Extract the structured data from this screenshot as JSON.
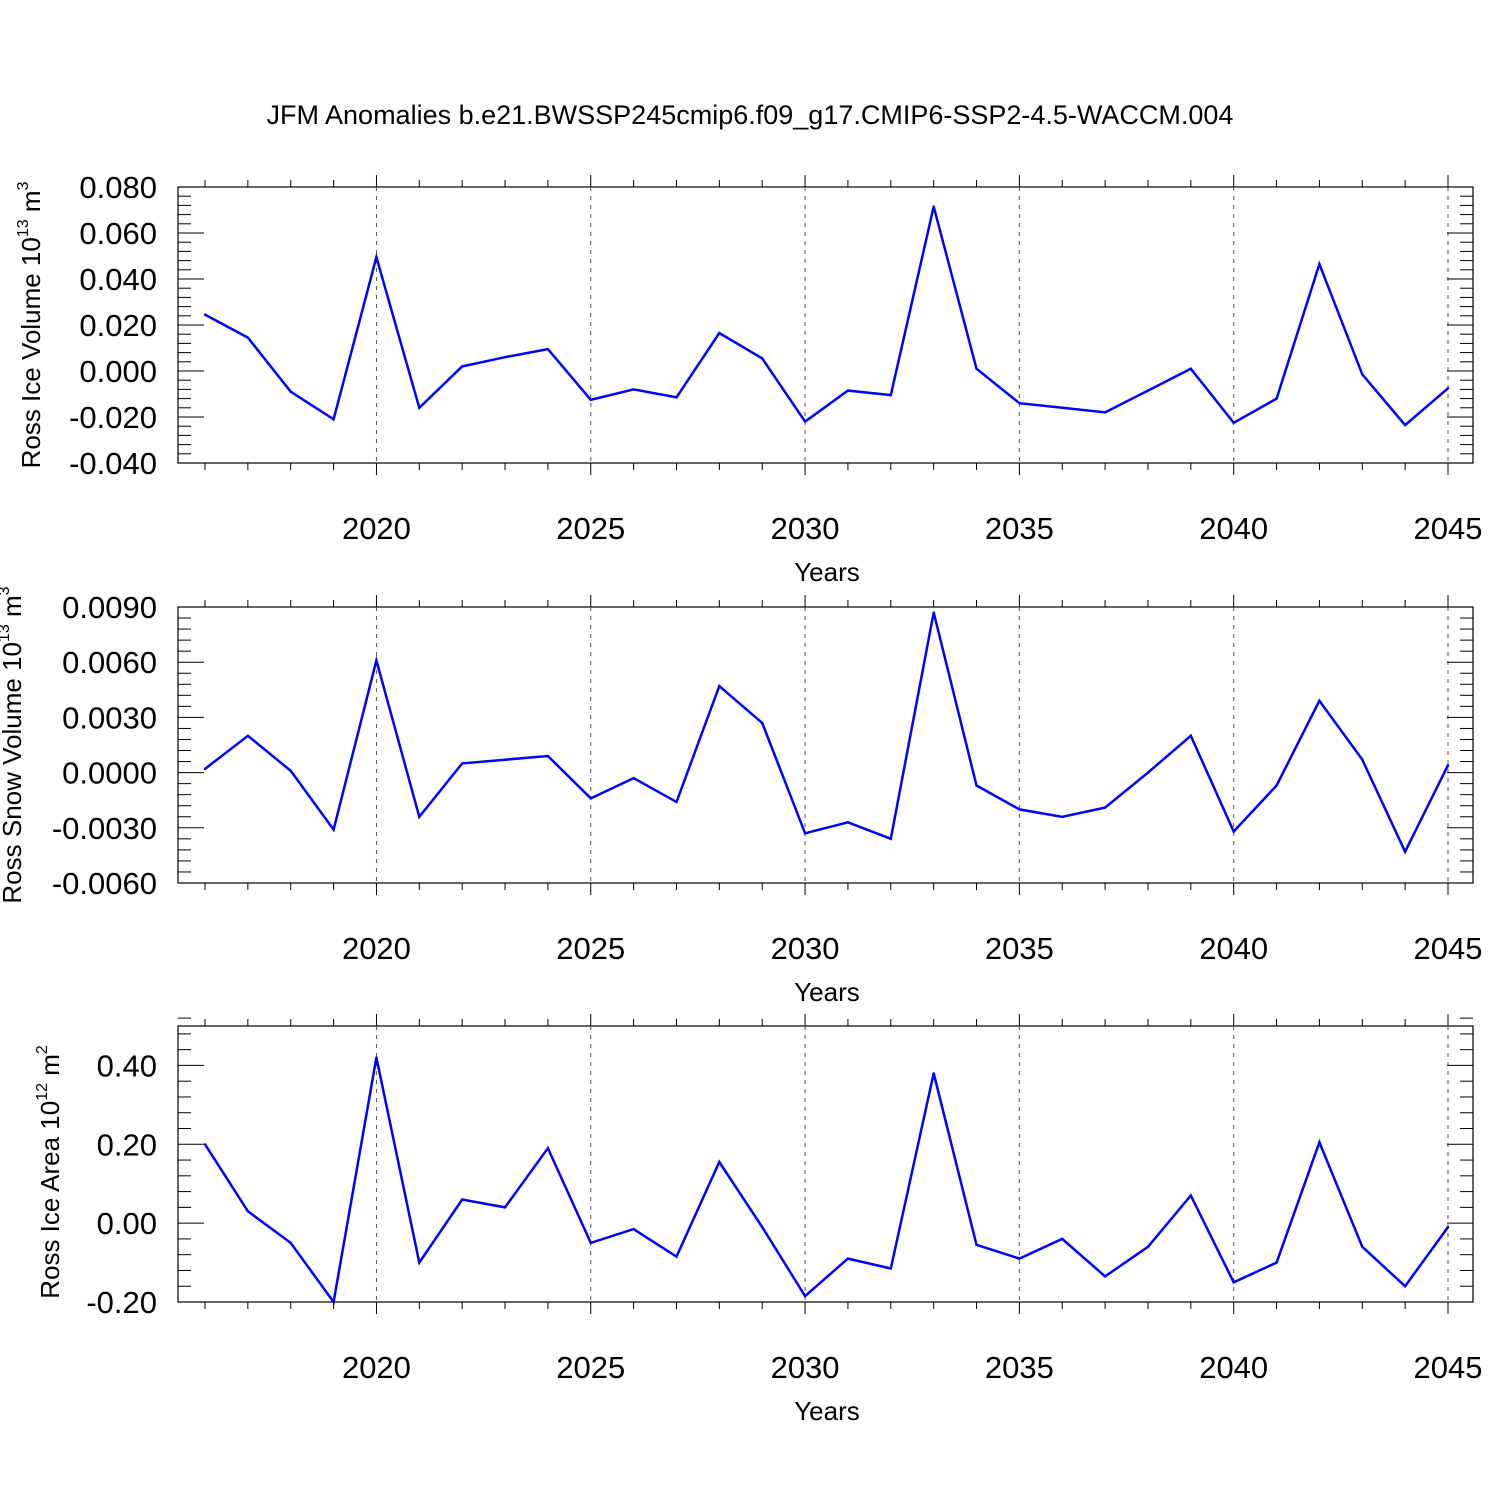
{
  "title": "JFM Anomalies b.e21.BWSSP245cmip6.f09_g17.CMIP6-SSP2-4.5-WACCM.004",
  "chart_data": [
    {
      "type": "line",
      "xlabel": "Years",
      "ylabel_base": "Ross Ice Volume 10",
      "ylabel_exp": "13",
      "ylabel_unit": " m",
      "ylabel_unit_exp": "3",
      "xlim": [
        2016,
        2045
      ],
      "ylim": [
        -0.04,
        0.08
      ],
      "yticks": [
        -0.04,
        -0.02,
        0.0,
        0.02,
        0.04,
        0.06,
        0.08
      ],
      "ytick_labels": [
        "-0.040",
        "-0.020",
        "0.000",
        "0.020",
        "0.040",
        "0.060",
        "0.080"
      ],
      "xticks": [
        2020,
        2025,
        2030,
        2035,
        2040,
        2045
      ],
      "xtick_labels": [
        "2020",
        "2025",
        "2030",
        "2035",
        "2040",
        "2045"
      ],
      "grid": "vertical dashed at major x ticks",
      "line_color": "#0000ff",
      "x": [
        2016,
        2017,
        2018,
        2019,
        2020,
        2021,
        2022,
        2023,
        2024,
        2025,
        2026,
        2027,
        2028,
        2029,
        2030,
        2031,
        2032,
        2033,
        2034,
        2035,
        2036,
        2037,
        2038,
        2039,
        2040,
        2041,
        2042,
        2043,
        2044,
        2045
      ],
      "values": [
        0.0245,
        0.0145,
        -0.009,
        -0.021,
        0.0495,
        -0.016,
        0.002,
        0.006,
        0.0095,
        -0.0125,
        -0.008,
        -0.0115,
        0.0165,
        0.0055,
        -0.022,
        -0.0085,
        -0.0105,
        0.0715,
        0.001,
        -0.014,
        -0.016,
        -0.018,
        -0.0085,
        0.001,
        -0.0225,
        -0.012,
        0.0465,
        -0.0015,
        -0.0235,
        -0.0075
      ]
    },
    {
      "type": "line",
      "xlabel": "Years",
      "ylabel_base": "Ross Snow Volume 10",
      "ylabel_exp": "13",
      "ylabel_unit": " m",
      "ylabel_unit_exp": "3",
      "xlim": [
        2016,
        2045
      ],
      "ylim": [
        -0.006,
        0.009
      ],
      "yticks": [
        -0.006,
        -0.003,
        0.0,
        0.003,
        0.006,
        0.009
      ],
      "ytick_labels": [
        "-0.0060",
        "-0.0030",
        "0.0000",
        "0.0030",
        "0.0060",
        "0.0090"
      ],
      "xticks": [
        2020,
        2025,
        2030,
        2035,
        2040,
        2045
      ],
      "xtick_labels": [
        "2020",
        "2025",
        "2030",
        "2035",
        "2040",
        "2045"
      ],
      "grid": "vertical dashed at major x ticks",
      "line_color": "#0000ff",
      "x": [
        2016,
        2017,
        2018,
        2019,
        2020,
        2021,
        2022,
        2023,
        2024,
        2025,
        2026,
        2027,
        2028,
        2029,
        2030,
        2031,
        2032,
        2033,
        2034,
        2035,
        2036,
        2037,
        2038,
        2039,
        2040,
        2041,
        2042,
        2043,
        2044,
        2045
      ],
      "values": [
        0.0002,
        0.002,
        0.0001,
        -0.0031,
        0.0061,
        -0.0024,
        0.0005,
        0.0007,
        0.0009,
        -0.0014,
        -0.0003,
        -0.0016,
        0.0047,
        0.0027,
        -0.0033,
        -0.0027,
        -0.0036,
        0.0087,
        -0.0007,
        -0.002,
        -0.0024,
        -0.0019,
        0.0,
        0.002,
        -0.0032,
        -0.0007,
        0.0039,
        0.0007,
        -0.0043,
        0.0004
      ]
    },
    {
      "type": "line",
      "xlabel": "Years",
      "ylabel_base": "Ross Ice Area 10",
      "ylabel_exp": "12",
      "ylabel_unit": " m",
      "ylabel_unit_exp": "2",
      "xlim": [
        2016,
        2045
      ],
      "ylim": [
        -0.2,
        0.5
      ],
      "yticks": [
        -0.2,
        0.0,
        0.2,
        0.4
      ],
      "ytick_labels": [
        "-0.20",
        "0.00",
        "0.20",
        "0.40"
      ],
      "xticks": [
        2020,
        2025,
        2030,
        2035,
        2040,
        2045
      ],
      "xtick_labels": [
        "2020",
        "2025",
        "2030",
        "2035",
        "2040",
        "2045"
      ],
      "grid": "vertical dashed at major x ticks",
      "line_color": "#0000ff",
      "x": [
        2016,
        2017,
        2018,
        2019,
        2020,
        2021,
        2022,
        2023,
        2024,
        2025,
        2026,
        2027,
        2028,
        2029,
        2030,
        2031,
        2032,
        2033,
        2034,
        2035,
        2036,
        2037,
        2038,
        2039,
        2040,
        2041,
        2042,
        2043,
        2044,
        2045
      ],
      "values": [
        0.2,
        0.03,
        -0.05,
        -0.2,
        0.42,
        -0.1,
        0.06,
        0.04,
        0.19,
        -0.05,
        -0.015,
        -0.085,
        0.155,
        -0.01,
        -0.185,
        -0.09,
        -0.115,
        0.38,
        -0.055,
        -0.09,
        -0.04,
        -0.135,
        -0.06,
        0.07,
        -0.15,
        -0.1,
        0.205,
        -0.06,
        -0.16,
        -0.01
      ]
    }
  ]
}
